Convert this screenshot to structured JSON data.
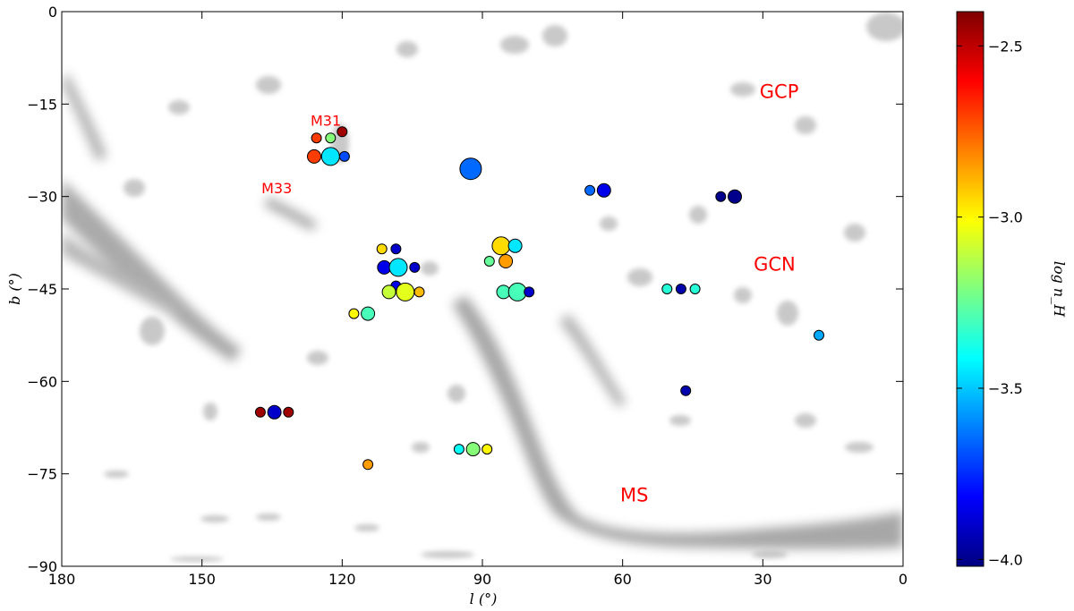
{
  "chart_data": {
    "type": "scatter",
    "title": "",
    "xlabel": "l (°)",
    "ylabel": "b (°)",
    "xlim": [
      180,
      0
    ],
    "ylim": [
      -90,
      0
    ],
    "x_ticks": [
      "180",
      "150",
      "120",
      "90",
      "60",
      "30",
      "0"
    ],
    "y_ticks": [
      "0",
      "−15",
      "−30",
      "−45",
      "−60",
      "−75",
      "−90"
    ],
    "grid": false,
    "legend": "none",
    "background": "grayscale HI column-density map of the sky",
    "colorbar": {
      "label": "log n_H",
      "range": [
        -4.02,
        -2.4
      ],
      "ticks": [
        "−2.5",
        "−3.0",
        "−3.5",
        "−4.0"
      ],
      "colormap": "jet"
    },
    "annotations": [
      {
        "text": "M31",
        "l": 123.5,
        "b": -18.5
      },
      {
        "text": "M33",
        "l": 134,
        "b": -29.5
      },
      {
        "text": "GCP",
        "l": 26.5,
        "b": -14
      },
      {
        "text": "GCN",
        "l": 27.5,
        "b": -42
      },
      {
        "text": "MS",
        "l": 57.5,
        "b": -79.5
      }
    ],
    "points": [
      {
        "l": 125.5,
        "b": -20.5,
        "log_n": -2.7,
        "size": "small"
      },
      {
        "l": 122.5,
        "b": -20.5,
        "log_n": -3.2,
        "size": "small"
      },
      {
        "l": 120.0,
        "b": -19.5,
        "log_n": -2.45,
        "size": "small"
      },
      {
        "l": 126.0,
        "b": -23.5,
        "log_n": -2.7,
        "size": "medium"
      },
      {
        "l": 122.5,
        "b": -23.5,
        "log_n": -3.45,
        "size": "large"
      },
      {
        "l": 119.5,
        "b": -23.5,
        "log_n": -3.7,
        "size": "small"
      },
      {
        "l": 92.5,
        "b": -25.5,
        "log_n": -3.65,
        "size": "xlarge"
      },
      {
        "l": 67.0,
        "b": -29.0,
        "log_n": -3.65,
        "size": "small"
      },
      {
        "l": 64.0,
        "b": -29.0,
        "log_n": -3.85,
        "size": "medium"
      },
      {
        "l": 39.0,
        "b": -30.0,
        "log_n": -4.0,
        "size": "small"
      },
      {
        "l": 36.0,
        "b": -30.0,
        "log_n": -4.0,
        "size": "medium"
      },
      {
        "l": 111.5,
        "b": -38.5,
        "log_n": -2.95,
        "size": "small"
      },
      {
        "l": 108.5,
        "b": -38.5,
        "log_n": -3.9,
        "size": "small"
      },
      {
        "l": 111.0,
        "b": -41.5,
        "log_n": -3.85,
        "size": "medium"
      },
      {
        "l": 108.0,
        "b": -41.5,
        "log_n": -3.45,
        "size": "large"
      },
      {
        "l": 104.5,
        "b": -41.5,
        "log_n": -3.9,
        "size": "small"
      },
      {
        "l": 108.5,
        "b": -44.5,
        "log_n": -3.85,
        "size": "small"
      },
      {
        "l": 110.0,
        "b": -45.5,
        "log_n": -3.1,
        "size": "medium"
      },
      {
        "l": 106.5,
        "b": -45.5,
        "log_n": -3.05,
        "size": "large"
      },
      {
        "l": 103.5,
        "b": -45.5,
        "log_n": -2.9,
        "size": "small"
      },
      {
        "l": 86.0,
        "b": -38.0,
        "log_n": -2.95,
        "size": "large"
      },
      {
        "l": 83.0,
        "b": -38.0,
        "log_n": -3.45,
        "size": "medium"
      },
      {
        "l": 88.5,
        "b": -40.5,
        "log_n": -3.25,
        "size": "small"
      },
      {
        "l": 85.0,
        "b": -40.5,
        "log_n": -2.85,
        "size": "medium"
      },
      {
        "l": 85.5,
        "b": -45.5,
        "log_n": -3.3,
        "size": "medium"
      },
      {
        "l": 82.5,
        "b": -45.5,
        "log_n": -3.3,
        "size": "large"
      },
      {
        "l": 80.0,
        "b": -45.5,
        "log_n": -3.9,
        "size": "small"
      },
      {
        "l": 117.5,
        "b": -49.0,
        "log_n": -3.0,
        "size": "small"
      },
      {
        "l": 114.5,
        "b": -49.0,
        "log_n": -3.3,
        "size": "medium"
      },
      {
        "l": 50.5,
        "b": -45.0,
        "log_n": -3.35,
        "size": "small"
      },
      {
        "l": 47.5,
        "b": -45.0,
        "log_n": -3.95,
        "size": "small"
      },
      {
        "l": 44.5,
        "b": -45.0,
        "log_n": -3.35,
        "size": "small"
      },
      {
        "l": 18.0,
        "b": -52.5,
        "log_n": -3.55,
        "size": "small"
      },
      {
        "l": 46.5,
        "b": -61.5,
        "log_n": -3.95,
        "size": "small"
      },
      {
        "l": 137.5,
        "b": -65.0,
        "log_n": -2.45,
        "size": "small"
      },
      {
        "l": 134.5,
        "b": -65.0,
        "log_n": -3.9,
        "size": "medium"
      },
      {
        "l": 131.5,
        "b": -65.0,
        "log_n": -2.45,
        "size": "small"
      },
      {
        "l": 95.0,
        "b": -71.0,
        "log_n": -3.4,
        "size": "small"
      },
      {
        "l": 92.0,
        "b": -71.0,
        "log_n": -3.2,
        "size": "medium"
      },
      {
        "l": 89.0,
        "b": -71.0,
        "log_n": -3.0,
        "size": "small"
      },
      {
        "l": 114.5,
        "b": -73.5,
        "log_n": -2.85,
        "size": "small"
      }
    ]
  }
}
